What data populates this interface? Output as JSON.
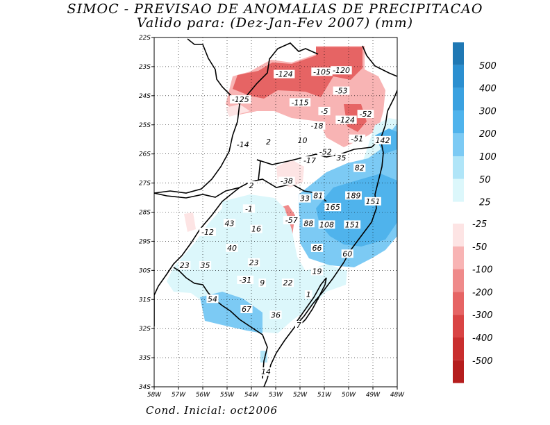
{
  "title_line1": "SIMOC - PREVISAO DE ANOMALIAS DE PRECIPITACAO",
  "title_line2": "Valido para: (Dez-Jan-Fev 2007) (mm)",
  "footer": "Cond. Inicial: oct2006",
  "lat_ticks": [
    "22S",
    "23S",
    "24S",
    "25S",
    "26S",
    "27S",
    "28S",
    "29S",
    "30S",
    "31S",
    "32S",
    "33S",
    "34S"
  ],
  "lon_ticks": [
    "58W",
    "57W",
    "56W",
    "55W",
    "54W",
    "53W",
    "52W",
    "51W",
    "50W",
    "49W",
    "48W"
  ],
  "colorbar_positive": [
    {
      "label": "500",
      "color": "#1f78b4"
    },
    {
      "label": "400",
      "color": "#2b8fd0"
    },
    {
      "label": "300",
      "color": "#3aa1e0"
    },
    {
      "label": "200",
      "color": "#4fb3ec"
    },
    {
      "label": "100",
      "color": "#7ccaf4"
    },
    {
      "label": "50",
      "color": "#b0e5f8"
    },
    {
      "label": "25",
      "color": "#dcf7fb"
    }
  ],
  "colorbar_negative": [
    {
      "label": "-25",
      "color": "#fde4e4"
    },
    {
      "label": "-50",
      "color": "#f8b4b4"
    },
    {
      "label": "-100",
      "color": "#ef8a8a"
    },
    {
      "label": "-200",
      "color": "#e66464"
    },
    {
      "label": "-300",
      "color": "#d94444"
    },
    {
      "label": "-400",
      "color": "#c92e2e"
    },
    {
      "label": "-500",
      "color": "#b51d1d"
    }
  ],
  "value_labels": [
    {
      "text": "-124",
      "lon": -52.65,
      "lat": -23.28
    },
    {
      "text": "-105",
      "lon": -51.1,
      "lat": -23.2
    },
    {
      "text": "-120",
      "lon": -50.3,
      "lat": -23.15
    },
    {
      "text": "-53",
      "lon": -50.3,
      "lat": -23.85
    },
    {
      "text": "-125",
      "lon": -54.45,
      "lat": -24.15
    },
    {
      "text": "-115",
      "lon": -52.0,
      "lat": -24.25
    },
    {
      "text": "-5",
      "lon": -51.0,
      "lat": -24.55
    },
    {
      "text": "-52",
      "lon": -49.3,
      "lat": -24.65
    },
    {
      "text": "-124",
      "lon": -50.1,
      "lat": -24.85
    },
    {
      "text": "-18",
      "lon": -51.3,
      "lat": -25.05
    },
    {
      "text": "-51",
      "lon": -49.65,
      "lat": -25.5
    },
    {
      "text": "142",
      "lon": -48.6,
      "lat": -25.55
    },
    {
      "text": "2",
      "lon": -53.3,
      "lat": -25.6
    },
    {
      "text": "10",
      "lon": -51.9,
      "lat": -25.55
    },
    {
      "text": "-14",
      "lon": -54.35,
      "lat": -25.7
    },
    {
      "text": "-52",
      "lon": -50.95,
      "lat": -25.95
    },
    {
      "text": "35",
      "lon": -50.3,
      "lat": -26.15
    },
    {
      "text": "-17",
      "lon": -51.6,
      "lat": -26.25
    },
    {
      "text": "82",
      "lon": -49.55,
      "lat": -26.5
    },
    {
      "text": "-38",
      "lon": -52.55,
      "lat": -26.95
    },
    {
      "text": "2",
      "lon": -54.0,
      "lat": -27.1
    },
    {
      "text": "189",
      "lon": -49.8,
      "lat": -27.45
    },
    {
      "text": "81",
      "lon": -51.25,
      "lat": -27.45
    },
    {
      "text": "33",
      "lon": -51.8,
      "lat": -27.55
    },
    {
      "text": "151",
      "lon": -49.0,
      "lat": -27.65
    },
    {
      "text": "165",
      "lon": -50.65,
      "lat": -27.85
    },
    {
      "text": "-1",
      "lon": -54.1,
      "lat": -27.9
    },
    {
      "text": "-57",
      "lon": -52.35,
      "lat": -28.3
    },
    {
      "text": "43",
      "lon": -54.9,
      "lat": -28.4
    },
    {
      "text": "88",
      "lon": -51.65,
      "lat": -28.4
    },
    {
      "text": "108",
      "lon": -50.9,
      "lat": -28.45
    },
    {
      "text": "151",
      "lon": -49.85,
      "lat": -28.45
    },
    {
      "text": "16",
      "lon": -53.8,
      "lat": -28.6
    },
    {
      "text": "-12",
      "lon": -55.8,
      "lat": -28.7
    },
    {
      "text": "40",
      "lon": -54.8,
      "lat": -29.25
    },
    {
      "text": "66",
      "lon": -51.3,
      "lat": -29.25
    },
    {
      "text": "60",
      "lon": -50.05,
      "lat": -29.45
    },
    {
      "text": "23",
      "lon": -53.9,
      "lat": -29.75
    },
    {
      "text": "23",
      "lon": -56.75,
      "lat": -29.85
    },
    {
      "text": "35",
      "lon": -55.9,
      "lat": -29.85
    },
    {
      "text": "19",
      "lon": -51.3,
      "lat": -30.05
    },
    {
      "text": "-31",
      "lon": -54.25,
      "lat": -30.35
    },
    {
      "text": "9",
      "lon": -53.55,
      "lat": -30.45
    },
    {
      "text": "22",
      "lon": -52.5,
      "lat": -30.45
    },
    {
      "text": "1",
      "lon": -51.65,
      "lat": -30.85
    },
    {
      "text": "54",
      "lon": -55.6,
      "lat": -31.0
    },
    {
      "text": "67",
      "lon": -54.2,
      "lat": -31.35
    },
    {
      "text": "36",
      "lon": -53.0,
      "lat": -31.55
    },
    {
      "text": "7",
      "lon": -52.05,
      "lat": -31.9
    },
    {
      "text": "14",
      "lon": -53.4,
      "lat": -33.5
    }
  ]
}
